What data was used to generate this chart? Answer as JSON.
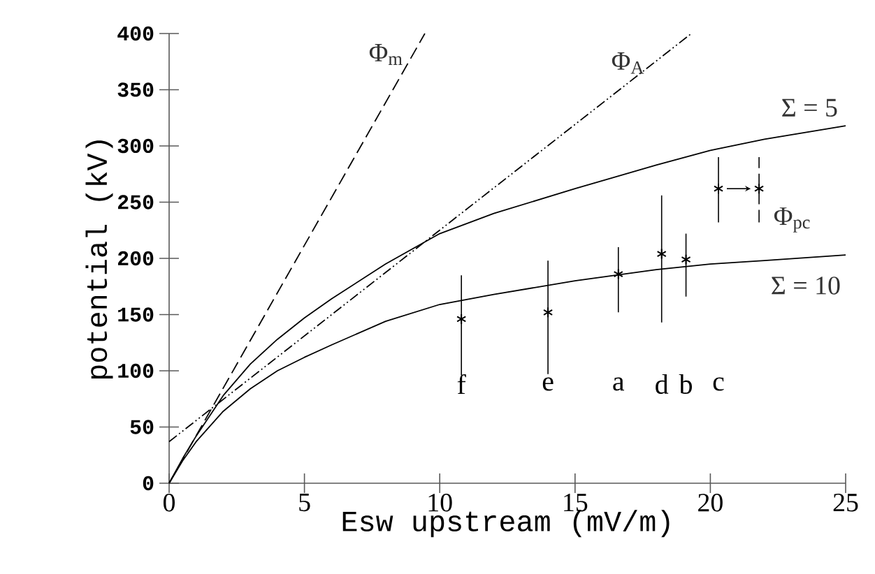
{
  "chart_data": {
    "type": "line",
    "xlabel": "Esw upstream (mV/m)",
    "ylabel": "potential (kV)",
    "xlim": [
      0,
      25
    ],
    "ylim": [
      0,
      400
    ],
    "xticks": [
      0,
      5,
      10,
      15,
      20,
      25
    ],
    "yticks": [
      0,
      50,
      100,
      150,
      200,
      250,
      300,
      350,
      400
    ],
    "grid": false,
    "series": [
      {
        "name": "Φ$_{m}$",
        "color": "#000000",
        "line_style": "dashed",
        "x": [
          0,
          9.45
        ],
        "values": [
          0,
          400
        ]
      },
      {
        "name": "Φ$_{A}$",
        "color": "#000000",
        "line_style": "dashdot",
        "x": [
          0,
          19.3
        ],
        "values": [
          37,
          400
        ]
      },
      {
        "name": "Σ = 5",
        "color": "#000000",
        "line_style": "solid",
        "x": [
          0,
          0.5,
          1,
          2,
          3,
          4,
          5,
          6,
          8,
          10,
          12,
          15,
          18,
          20,
          22,
          25
        ],
        "values": [
          0,
          22,
          42,
          78,
          106,
          128,
          147,
          164,
          195,
          222,
          240,
          262,
          283,
          296,
          306,
          318
        ]
      },
      {
        "name": "Σ = 10",
        "color": "#000000",
        "line_style": "solid",
        "x": [
          0,
          0.5,
          1,
          2,
          3,
          4,
          5,
          6,
          8,
          10,
          12,
          15,
          18,
          20,
          22,
          25
        ],
        "values": [
          0,
          20,
          37,
          64,
          84,
          100,
          112,
          123,
          144,
          159,
          168,
          180,
          190,
          195,
          198,
          203
        ]
      },
      {
        "name": "Φ$_{pc}$",
        "type": "scatter",
        "marker": "cross",
        "color": "#000000",
        "x": [
          10.8,
          14.0,
          16.6,
          18.2,
          19.1,
          20.3
        ],
        "values": [
          146,
          152,
          186,
          204,
          199,
          262
        ],
        "errors": [
          [
            96,
            185
          ],
          [
            97,
            198
          ],
          [
            152,
            210
          ],
          [
            143,
            256
          ],
          [
            166,
            222
          ],
          [
            232,
            290
          ]
        ]
      },
      {
        "type": "scatter",
        "marker": "cross",
        "color": "#000000",
        "line_style": "dashed",
        "x": [
          21.8
        ],
        "values": [
          262
        ],
        "errors": [
          [
            232,
            290
          ]
        ]
      }
    ],
    "annotations": [
      "f",
      "e",
      "a",
      "d",
      "b",
      "c"
    ]
  }
}
